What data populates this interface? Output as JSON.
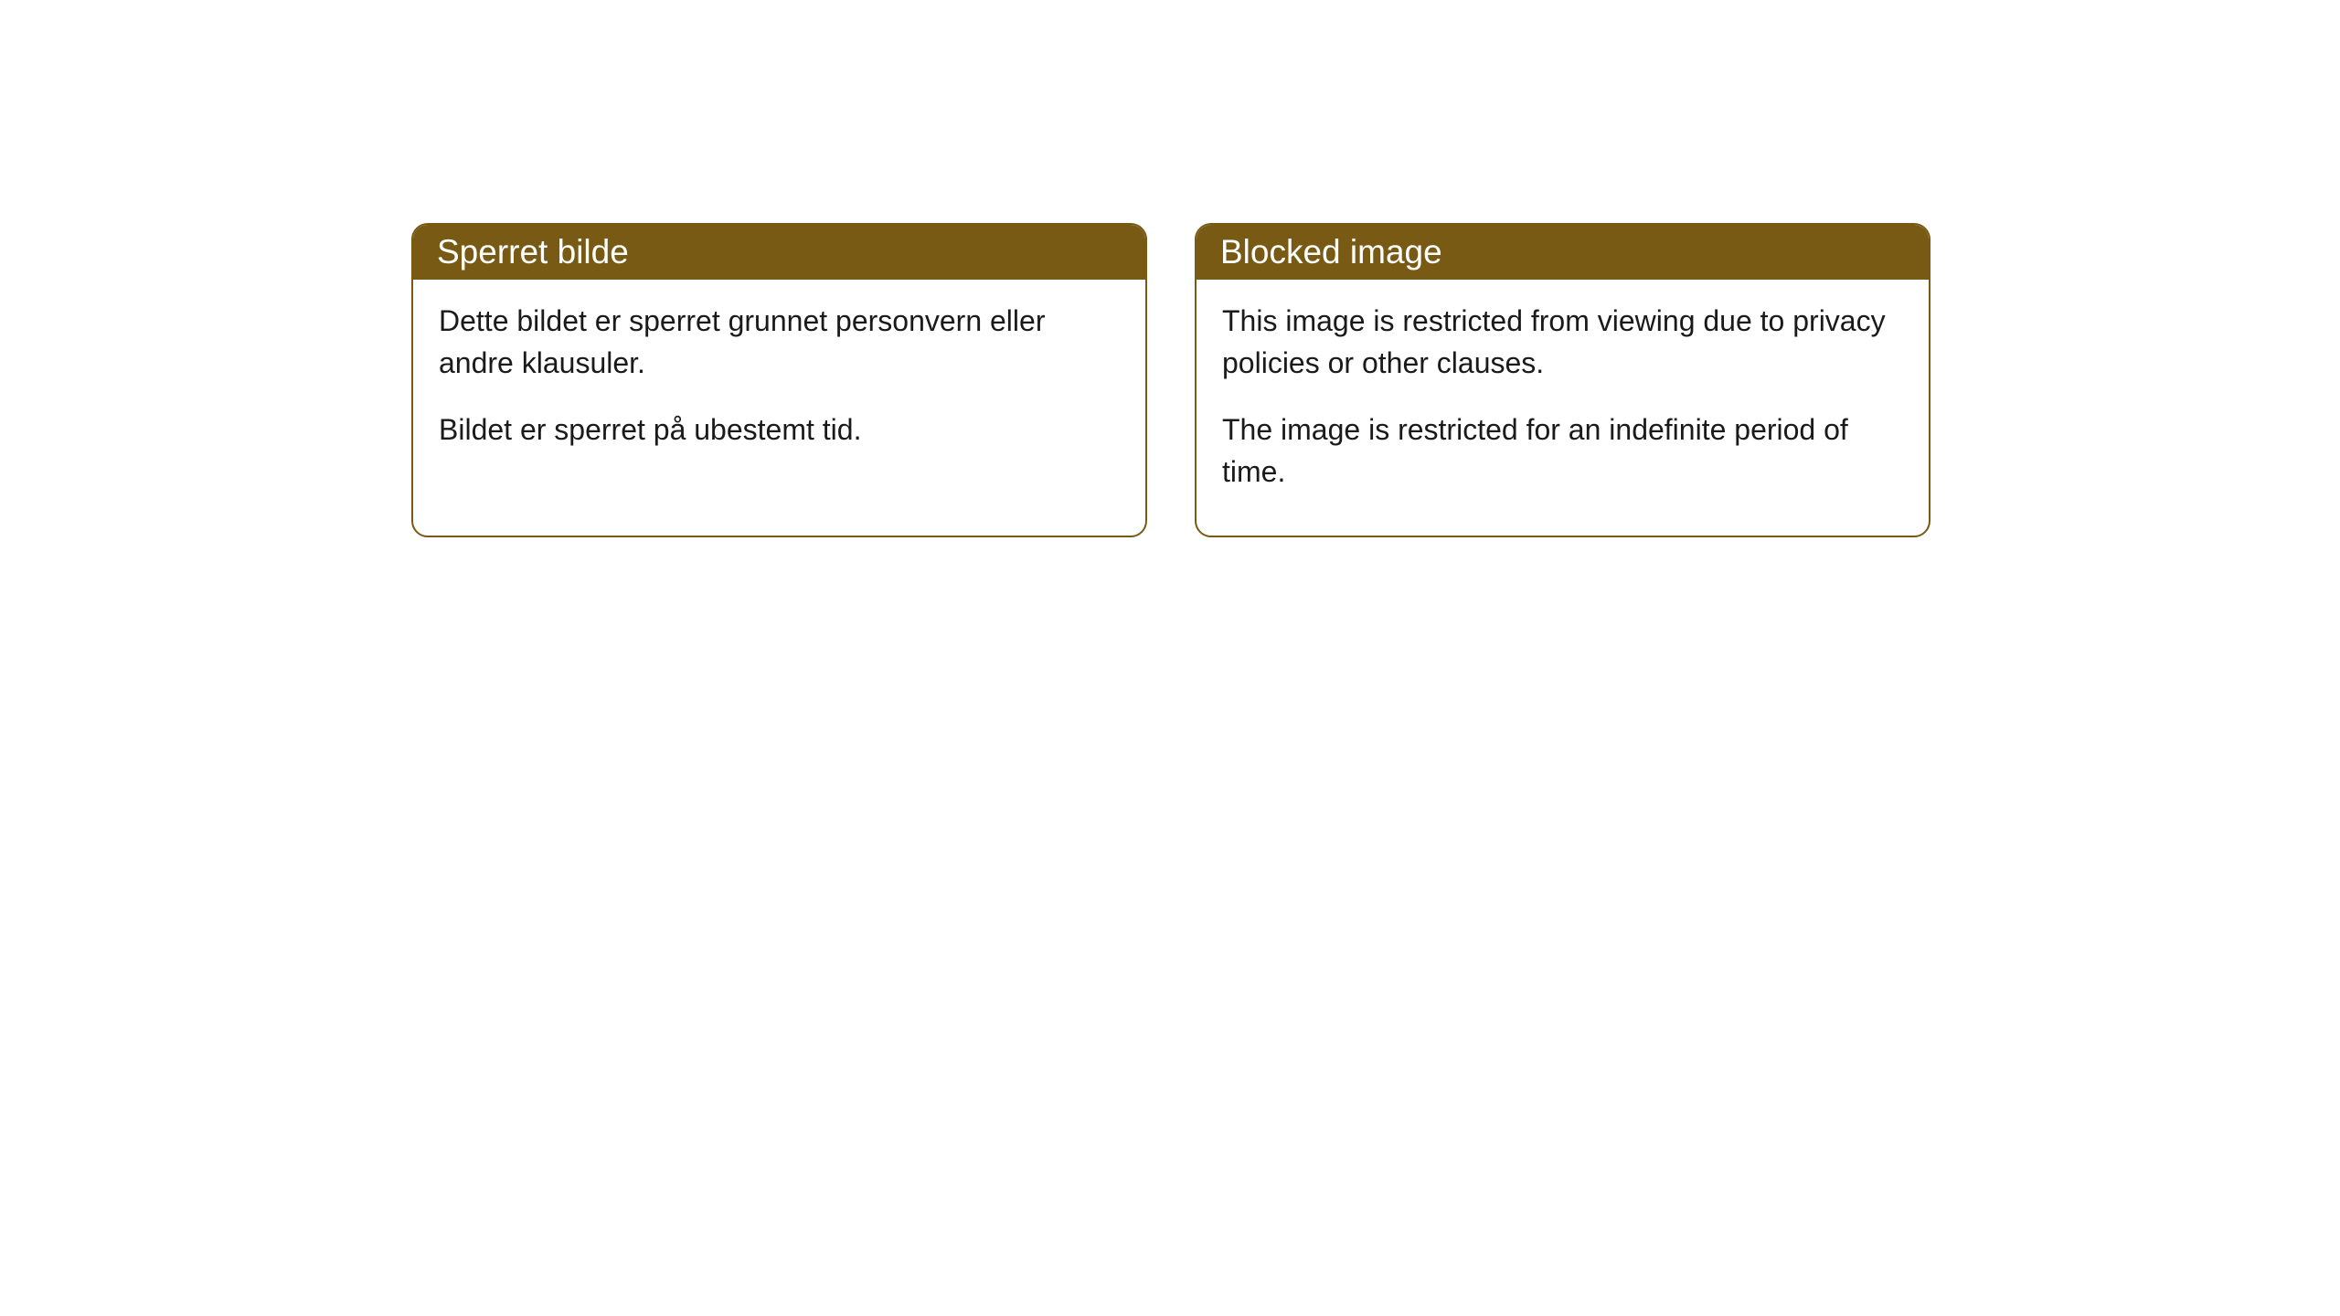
{
  "cards": [
    {
      "title": "Sperret bilde",
      "paragraph1": "Dette bildet er sperret grunnet personvern eller andre klausuler.",
      "paragraph2": "Bildet er sperret på ubestemt tid."
    },
    {
      "title": "Blocked image",
      "paragraph1": "This image is restricted from viewing due to privacy policies or other clauses.",
      "paragraph2": "The image is restricted for an indefinite period of time."
    }
  ],
  "styling": {
    "header_background": "#785a14",
    "header_text_color": "#ffffff",
    "border_color": "#785a14",
    "body_background": "#ffffff",
    "body_text_color": "#1a1a1a",
    "border_radius": 18,
    "header_fontsize": 37,
    "body_fontsize": 32
  }
}
